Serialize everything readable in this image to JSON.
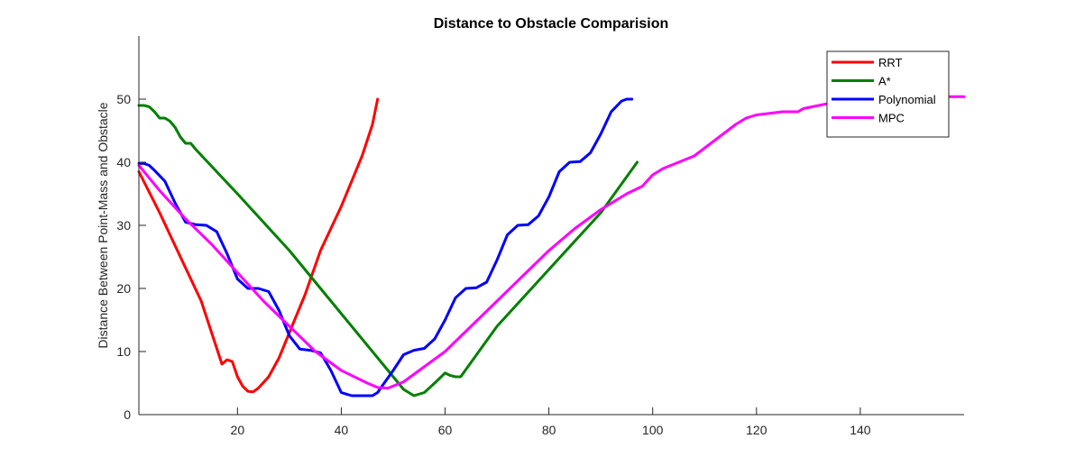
{
  "chart_data": {
    "type": "line",
    "title": "Distance to Obstacle Comparision",
    "xlabel": "",
    "ylabel": "Distance Between Point-Mass and Obstacle",
    "xlim": [
      1,
      160
    ],
    "ylim": [
      0,
      60
    ],
    "x_ticks": [
      "20",
      "40",
      "60",
      "80",
      "100",
      "120",
      "140"
    ],
    "x_tick_values": [
      20,
      40,
      60,
      80,
      100,
      120,
      140
    ],
    "y_ticks": [
      "0",
      "10",
      "20",
      "30",
      "40",
      "50"
    ],
    "y_tick_values": [
      0,
      10,
      20,
      30,
      40,
      50
    ],
    "grid": false,
    "legend_position": "top-right",
    "series": [
      {
        "name": "RRT",
        "color": "#ff0000",
        "points": [
          [
            1,
            38.5
          ],
          [
            5,
            32
          ],
          [
            9,
            25
          ],
          [
            13,
            18
          ],
          [
            17,
            8
          ],
          [
            18,
            8.7
          ],
          [
            19,
            8.4
          ],
          [
            20,
            6
          ],
          [
            21,
            4.5
          ],
          [
            22,
            3.7
          ],
          [
            23,
            3.6
          ],
          [
            24,
            4.2
          ],
          [
            26,
            6
          ],
          [
            28,
            9
          ],
          [
            30,
            13
          ],
          [
            33,
            19
          ],
          [
            36,
            26
          ],
          [
            40,
            33
          ],
          [
            44,
            41
          ],
          [
            46,
            46
          ],
          [
            47,
            50
          ]
        ]
      },
      {
        "name": "A*",
        "color": "#008000",
        "points": [
          [
            1,
            49
          ],
          [
            2,
            49
          ],
          [
            3,
            48.8
          ],
          [
            4,
            48
          ],
          [
            5,
            47
          ],
          [
            6,
            47
          ],
          [
            7,
            46.5
          ],
          [
            8,
            45.5
          ],
          [
            9,
            44
          ],
          [
            10,
            43
          ],
          [
            11,
            43
          ],
          [
            12,
            42
          ],
          [
            20,
            35
          ],
          [
            30,
            26
          ],
          [
            40,
            16
          ],
          [
            50,
            6
          ],
          [
            52,
            4
          ],
          [
            54,
            3
          ],
          [
            56,
            3.5
          ],
          [
            58,
            5
          ],
          [
            60,
            6.6
          ],
          [
            61,
            6.2
          ],
          [
            62,
            6
          ],
          [
            63,
            6
          ],
          [
            70,
            14
          ],
          [
            80,
            23
          ],
          [
            90,
            32
          ],
          [
            97,
            40
          ]
        ]
      },
      {
        "name": "Polynomial",
        "color": "#0000ff",
        "points": [
          [
            1,
            39.8
          ],
          [
            2,
            39.8
          ],
          [
            3,
            39.5
          ],
          [
            4,
            38.7
          ],
          [
            6,
            37
          ],
          [
            8,
            33.5
          ],
          [
            10,
            30.5
          ],
          [
            12,
            30.1
          ],
          [
            14,
            30
          ],
          [
            16,
            29
          ],
          [
            18,
            25.5
          ],
          [
            20,
            21.5
          ],
          [
            22,
            20
          ],
          [
            24,
            20
          ],
          [
            26,
            19.5
          ],
          [
            28,
            16.5
          ],
          [
            30,
            12.5
          ],
          [
            32,
            10.4
          ],
          [
            34,
            10.2
          ],
          [
            36,
            9.8
          ],
          [
            38,
            7
          ],
          [
            40,
            3.5
          ],
          [
            42,
            3
          ],
          [
            44,
            3
          ],
          [
            46,
            3
          ],
          [
            47,
            3.5
          ],
          [
            48,
            4.7
          ],
          [
            50,
            7
          ],
          [
            52,
            9.5
          ],
          [
            54,
            10.2
          ],
          [
            56,
            10.5
          ],
          [
            58,
            12
          ],
          [
            60,
            15
          ],
          [
            62,
            18.5
          ],
          [
            64,
            20
          ],
          [
            66,
            20.1
          ],
          [
            68,
            21
          ],
          [
            70,
            24.5
          ],
          [
            72,
            28.5
          ],
          [
            74,
            30
          ],
          [
            76,
            30.1
          ],
          [
            78,
            31.5
          ],
          [
            80,
            34.5
          ],
          [
            82,
            38.5
          ],
          [
            84,
            40
          ],
          [
            86,
            40.1
          ],
          [
            88,
            41.5
          ],
          [
            90,
            44.5
          ],
          [
            92,
            48
          ],
          [
            94,
            49.7
          ],
          [
            95,
            50
          ],
          [
            96,
            50
          ]
        ]
      },
      {
        "name": "MPC",
        "color": "#ff00ff",
        "points": [
          [
            1,
            39.5
          ],
          [
            5,
            35.5
          ],
          [
            10,
            31
          ],
          [
            15,
            27
          ],
          [
            20,
            22.5
          ],
          [
            25,
            18
          ],
          [
            30,
            14
          ],
          [
            35,
            10
          ],
          [
            40,
            7
          ],
          [
            45,
            5
          ],
          [
            47,
            4.3
          ],
          [
            49,
            4.2
          ],
          [
            52,
            5.2
          ],
          [
            55,
            7
          ],
          [
            60,
            10
          ],
          [
            65,
            14
          ],
          [
            70,
            18
          ],
          [
            75,
            22
          ],
          [
            80,
            26
          ],
          [
            85,
            29.5
          ],
          [
            90,
            32.5
          ],
          [
            95,
            35
          ],
          [
            98,
            36.2
          ],
          [
            100,
            38
          ],
          [
            102,
            39
          ],
          [
            105,
            40
          ],
          [
            108,
            41
          ],
          [
            112,
            43.5
          ],
          [
            116,
            46
          ],
          [
            118,
            47
          ],
          [
            120,
            47.5
          ],
          [
            125,
            48
          ],
          [
            128,
            48
          ],
          [
            129,
            48.5
          ],
          [
            132,
            49
          ],
          [
            135,
            49.5
          ],
          [
            140,
            50
          ],
          [
            145,
            50.2
          ],
          [
            150,
            50.3
          ],
          [
            155,
            50.4
          ],
          [
            160,
            50.4
          ]
        ]
      }
    ]
  }
}
